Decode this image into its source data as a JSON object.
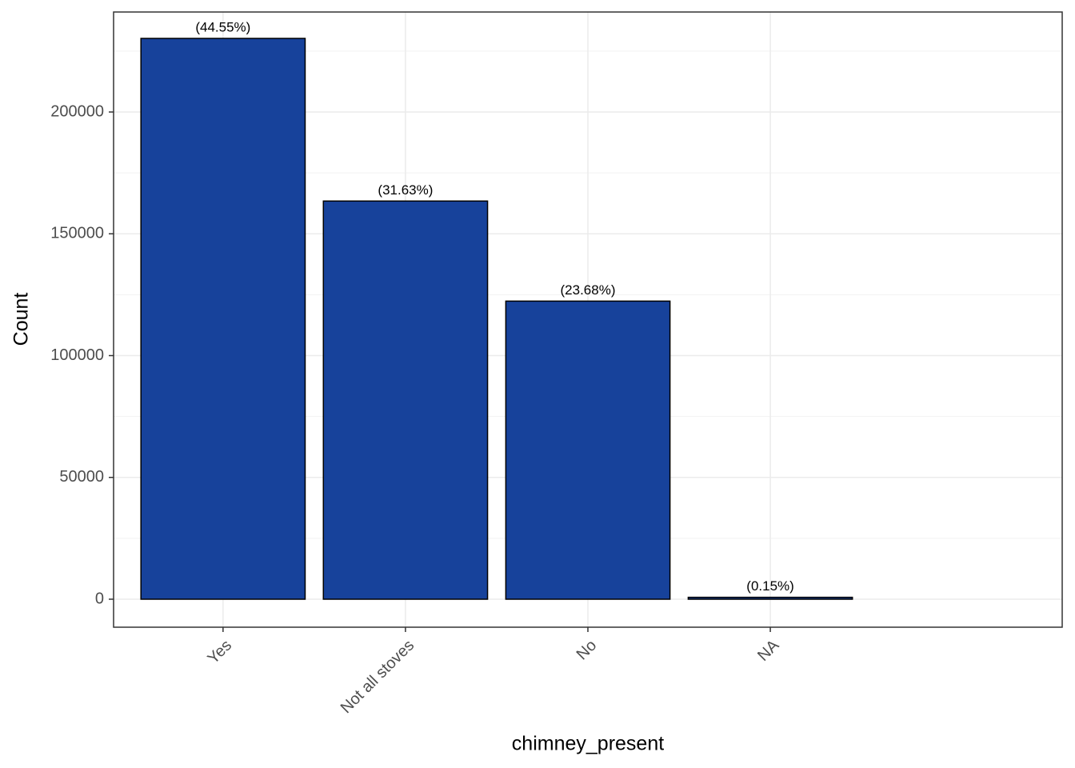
{
  "chart_data": {
    "type": "bar",
    "x_label": "chimney_present",
    "y_label": "Count",
    "categories": [
      "Yes",
      "Not all stoves",
      "No",
      "NA"
    ],
    "values": [
      230212,
      163448,
      122367,
      775
    ],
    "labels": [
      "(44.55%)",
      "(31.63%)",
      "(23.68%)",
      "(0.15%)"
    ],
    "color": "#17429b",
    "ylim": [
      -11494,
      241050
    ],
    "yticks": [
      0,
      50000,
      100000,
      150000,
      200000
    ],
    "yminor": [
      25000,
      75000,
      125000,
      175000,
      225000
    ],
    "grid": true
  }
}
